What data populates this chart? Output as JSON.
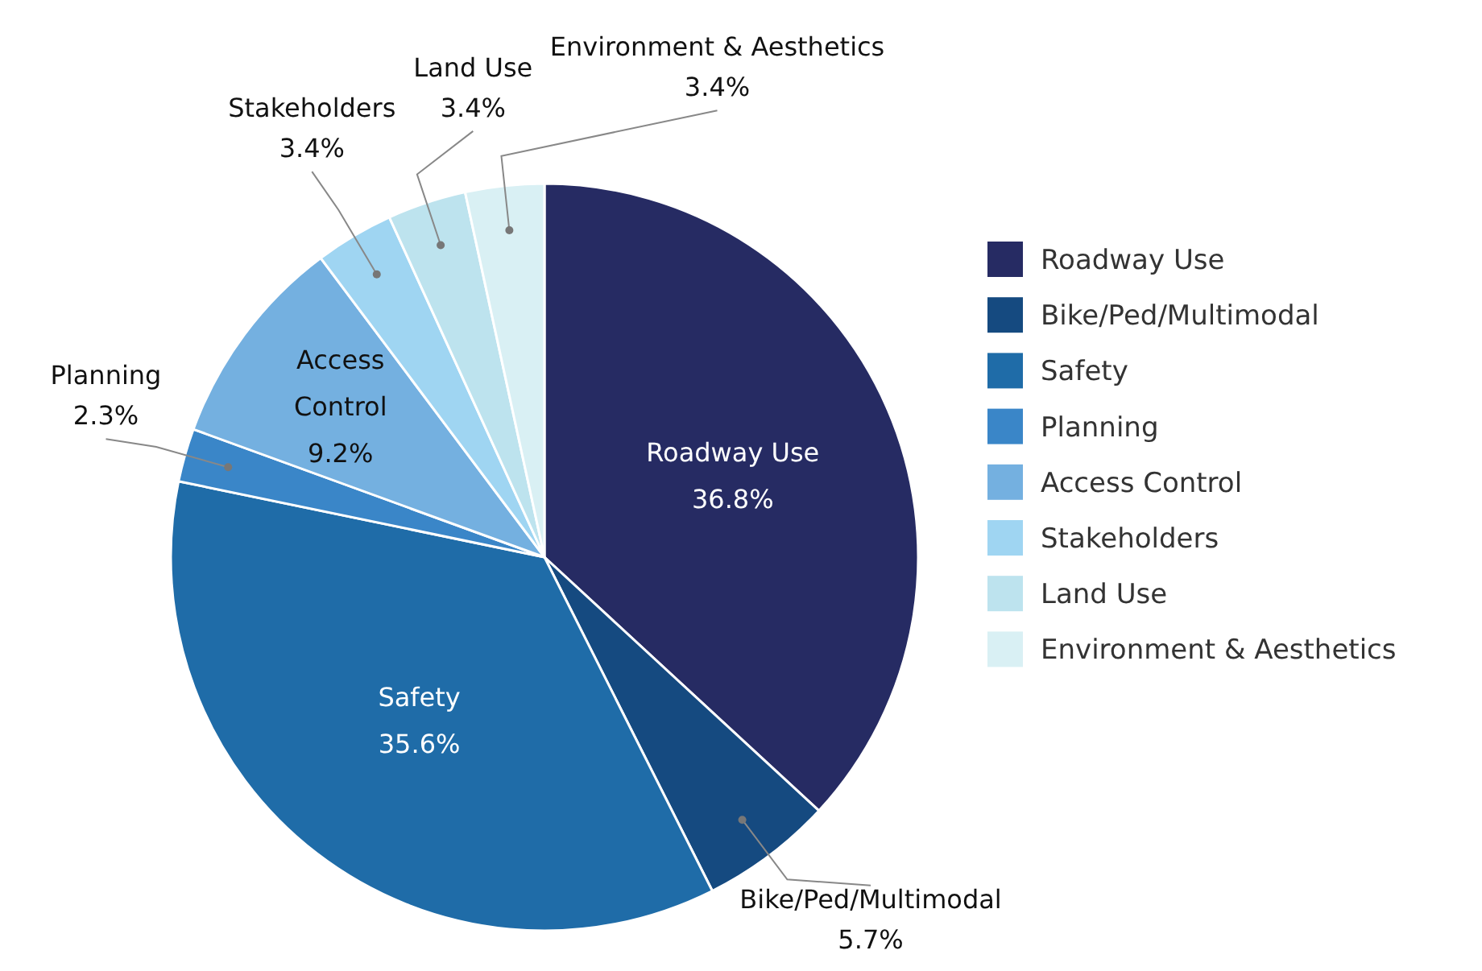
{
  "chart_data": {
    "type": "pie",
    "categories": [
      "Roadway Use",
      "Bike/Ped/Multimodal",
      "Safety",
      "Planning",
      "Access Control",
      "Stakeholders",
      "Land Use",
      "Environment & Aesthetics"
    ],
    "values": [
      36.8,
      5.7,
      35.6,
      2.3,
      9.2,
      3.4,
      3.4,
      3.4
    ],
    "value_labels": [
      "36.8%",
      "5.7%",
      "35.6%",
      "2.3%",
      "9.2%",
      "3.4%",
      "3.4%",
      "3.4%"
    ],
    "colors": [
      "#262b63",
      "#154a80",
      "#1f6ca8",
      "#3a86c8",
      "#74b0e0",
      "#9fd5f2",
      "#bde3ee",
      "#d9f0f4"
    ],
    "legend": "right"
  }
}
